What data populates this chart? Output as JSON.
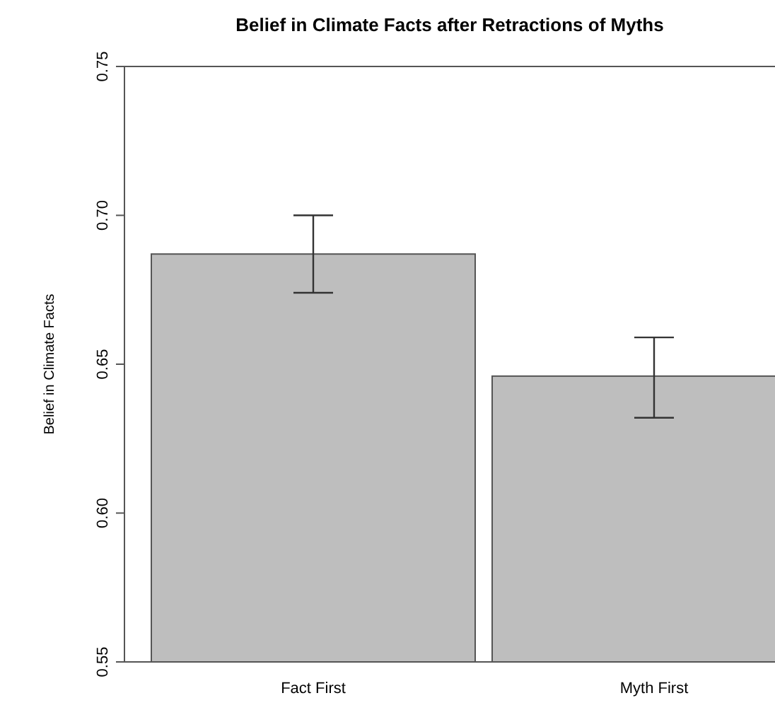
{
  "chart_data": {
    "type": "bar",
    "title": "Belief in Climate Facts after Retractions of Myths",
    "ylabel": "Belief in Climate Facts",
    "categories": [
      "Fact First",
      "Myth First"
    ],
    "values": [
      0.687,
      0.646
    ],
    "color": "#bebebe",
    "errors": [
      [
        0.674,
        0.7
      ],
      [
        0.632,
        0.659
      ]
    ],
    "ylim": [
      0.55,
      0.75
    ],
    "yticks": [
      {
        "value": 0.55,
        "label": "0.55"
      },
      {
        "value": 0.6,
        "label": "0.60"
      },
      {
        "value": 0.65,
        "label": "0.65"
      },
      {
        "value": 0.7,
        "label": "0.70"
      },
      {
        "value": 0.75,
        "label": "0.75"
      }
    ],
    "grid": false
  }
}
